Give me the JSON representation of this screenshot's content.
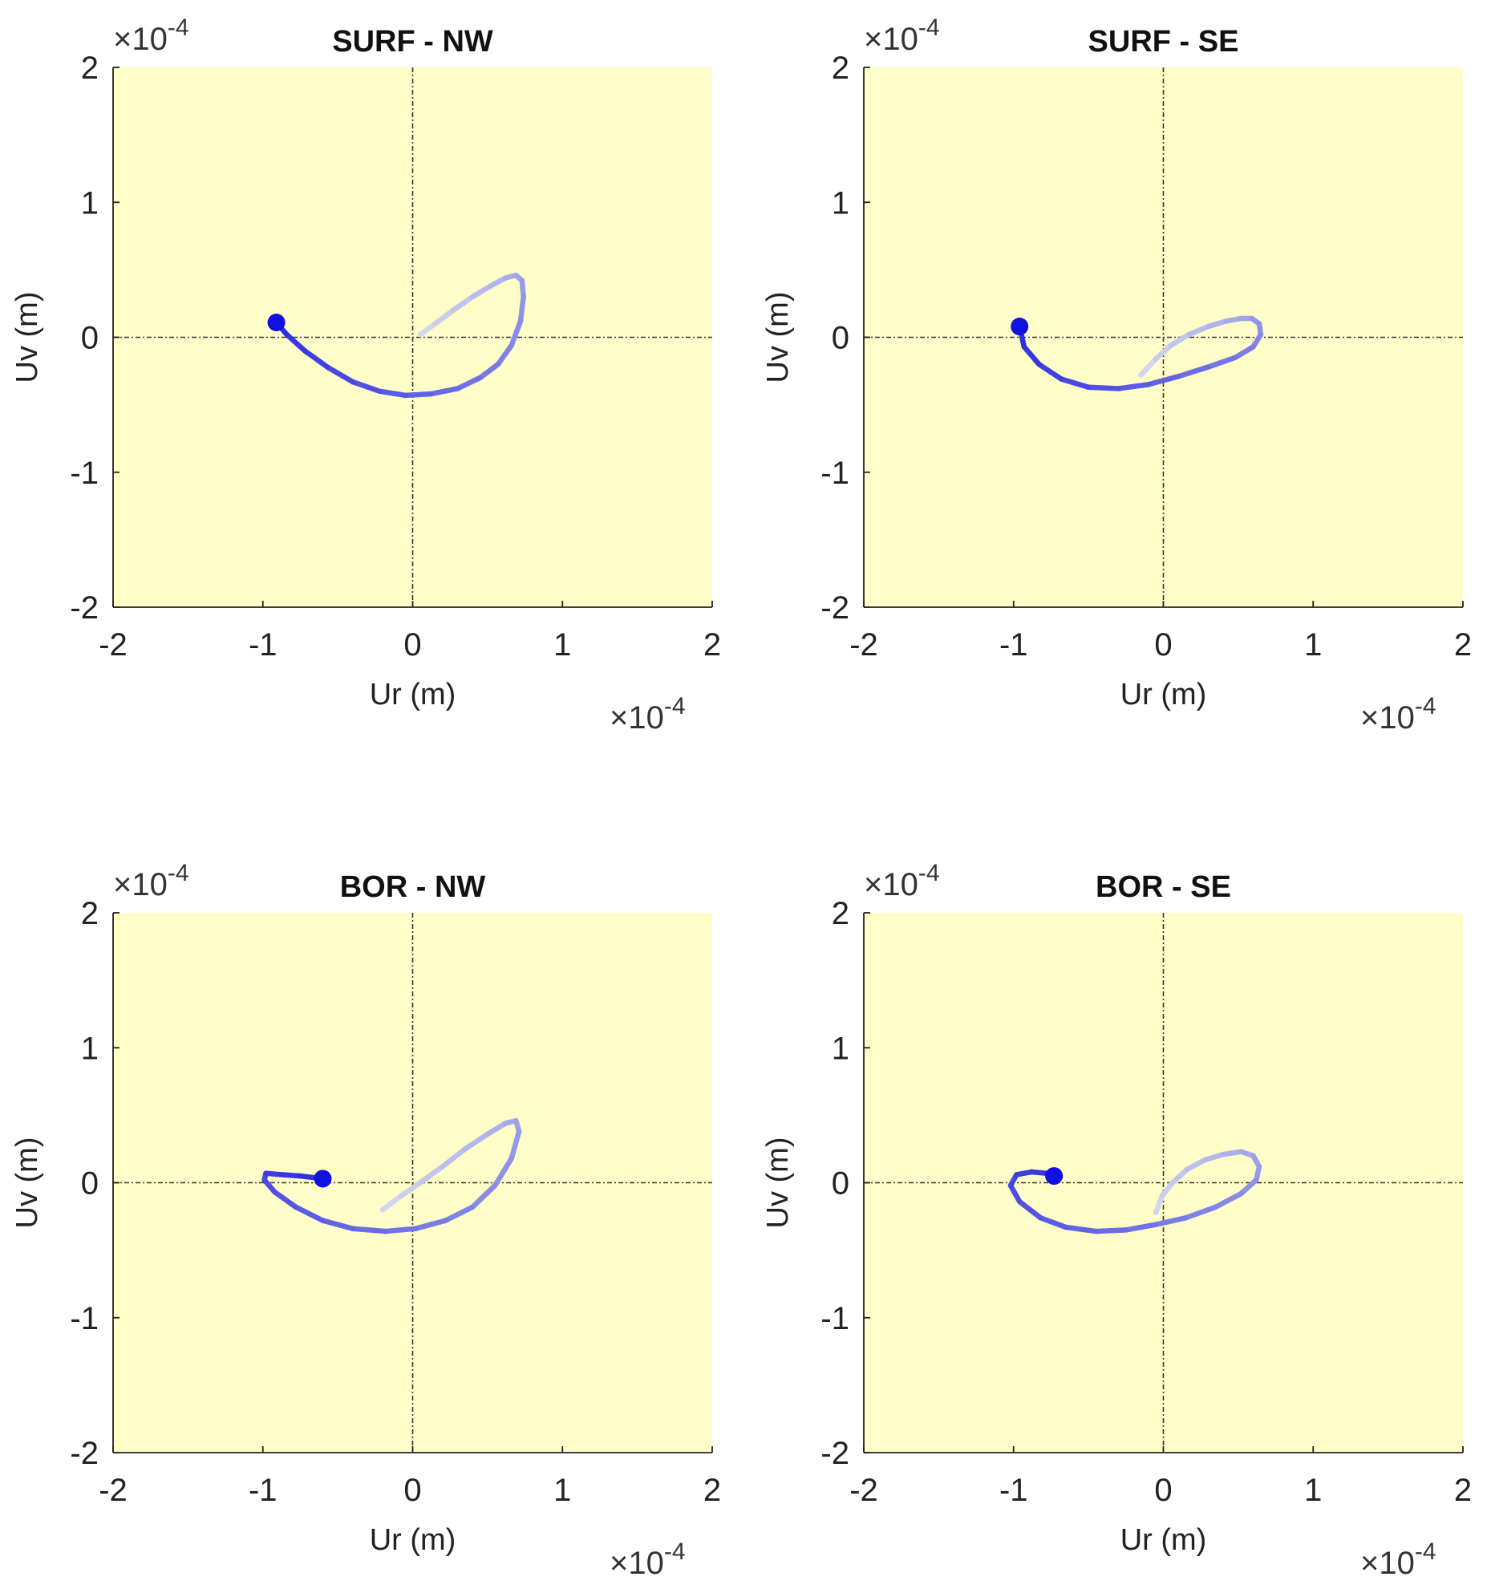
{
  "chart_data": [
    {
      "type": "line",
      "title": "SURF - NW",
      "xlabel": "Ur (m)",
      "ylabel": "Uv (m)",
      "xlim": [
        -2,
        2
      ],
      "ylim": [
        -2,
        2
      ],
      "xticks": [
        "-2",
        "-1",
        "0",
        "1",
        "2"
      ],
      "yticks": [
        "-2",
        "-1",
        "0",
        "1",
        "2"
      ],
      "x_multiplier": "×10",
      "x_exponent": "-4",
      "y_multiplier": "×10",
      "y_exponent": "-4",
      "background": "#fffdc8",
      "line_color": "#2f2fe0",
      "marker_color": "#1010e0",
      "grid": false,
      "zero_lines": true,
      "x": [
        0.05,
        0.15,
        0.27,
        0.4,
        0.52,
        0.62,
        0.69,
        0.73,
        0.74,
        0.72,
        0.66,
        0.57,
        0.45,
        0.3,
        0.12,
        -0.05,
        -0.22,
        -0.4,
        -0.57,
        -0.72,
        -0.84,
        -0.91
      ],
      "y": [
        0.02,
        0.1,
        0.2,
        0.3,
        0.38,
        0.44,
        0.46,
        0.42,
        0.3,
        0.12,
        -0.06,
        -0.2,
        -0.3,
        -0.38,
        -0.42,
        -0.43,
        -0.4,
        -0.33,
        -0.22,
        -0.1,
        0.02,
        0.11
      ]
    },
    {
      "type": "line",
      "title": "SURF - SE",
      "xlabel": "Ur (m)",
      "ylabel": "Uv (m)",
      "xlim": [
        -2,
        2
      ],
      "ylim": [
        -2,
        2
      ],
      "xticks": [
        "-2",
        "-1",
        "0",
        "1",
        "2"
      ],
      "yticks": [
        "-2",
        "-1",
        "0",
        "1",
        "2"
      ],
      "x_multiplier": "×10",
      "x_exponent": "-4",
      "y_multiplier": "×10",
      "y_exponent": "-4",
      "background": "#fffdc8",
      "line_color": "#2f2fe0",
      "marker_color": "#1010e0",
      "grid": false,
      "zero_lines": true,
      "x": [
        -0.15,
        -0.05,
        0.05,
        0.17,
        0.3,
        0.42,
        0.52,
        0.59,
        0.64,
        0.65,
        0.6,
        0.48,
        0.3,
        0.1,
        -0.1,
        -0.3,
        -0.5,
        -0.68,
        -0.83,
        -0.93,
        -0.96
      ],
      "y": [
        -0.28,
        -0.16,
        -0.06,
        0.02,
        0.08,
        0.12,
        0.14,
        0.14,
        0.1,
        0.02,
        -0.07,
        -0.15,
        -0.22,
        -0.29,
        -0.35,
        -0.38,
        -0.37,
        -0.31,
        -0.2,
        -0.07,
        0.08
      ]
    },
    {
      "type": "line",
      "title": "BOR - NW",
      "xlabel": "Ur (m)",
      "ylabel": "Uv (m)",
      "xlim": [
        -2,
        2
      ],
      "ylim": [
        -2,
        2
      ],
      "xticks": [
        "-2",
        "-1",
        "0",
        "1",
        "2"
      ],
      "yticks": [
        "-2",
        "-1",
        "0",
        "1",
        "2"
      ],
      "x_multiplier": "×10",
      "x_exponent": "-4",
      "y_multiplier": "×10",
      "y_exponent": "-4",
      "background": "#fffdc8",
      "line_color": "#2f2fe0",
      "marker_color": "#1010e0",
      "grid": false,
      "zero_lines": true,
      "x": [
        -0.2,
        -0.08,
        0.05,
        0.2,
        0.35,
        0.5,
        0.62,
        0.69,
        0.71,
        0.66,
        0.55,
        0.4,
        0.22,
        0.02,
        -0.18,
        -0.4,
        -0.6,
        -0.78,
        -0.92,
        -0.99,
        -0.98,
        -0.88,
        -0.75,
        -0.6
      ],
      "y": [
        -0.2,
        -0.1,
        0.0,
        0.12,
        0.25,
        0.36,
        0.44,
        0.46,
        0.38,
        0.18,
        -0.02,
        -0.18,
        -0.28,
        -0.34,
        -0.36,
        -0.34,
        -0.28,
        -0.18,
        -0.07,
        0.02,
        0.07,
        0.06,
        0.05,
        0.03
      ]
    },
    {
      "type": "line",
      "title": "BOR - SE",
      "xlabel": "Ur (m)",
      "ylabel": "Uv (m)",
      "xlim": [
        -2,
        2
      ],
      "ylim": [
        -2,
        2
      ],
      "xticks": [
        "-2",
        "-1",
        "0",
        "1",
        "2"
      ],
      "yticks": [
        "-2",
        "-1",
        "0",
        "1",
        "2"
      ],
      "x_multiplier": "×10",
      "x_exponent": "-4",
      "y_multiplier": "×10",
      "y_exponent": "-4",
      "background": "#fffdc8",
      "line_color": "#2f2fe0",
      "marker_color": "#1010e0",
      "grid": false,
      "zero_lines": true,
      "x": [
        -0.05,
        -0.01,
        0.06,
        0.16,
        0.28,
        0.4,
        0.52,
        0.6,
        0.64,
        0.62,
        0.52,
        0.35,
        0.15,
        -0.05,
        -0.25,
        -0.45,
        -0.65,
        -0.82,
        -0.96,
        -1.02,
        -0.98,
        -0.88,
        -0.78,
        -0.73
      ],
      "y": [
        -0.22,
        -0.1,
        0.0,
        0.1,
        0.17,
        0.21,
        0.23,
        0.2,
        0.12,
        0.02,
        -0.08,
        -0.18,
        -0.26,
        -0.31,
        -0.35,
        -0.36,
        -0.33,
        -0.26,
        -0.14,
        -0.02,
        0.06,
        0.08,
        0.07,
        0.05
      ]
    }
  ]
}
